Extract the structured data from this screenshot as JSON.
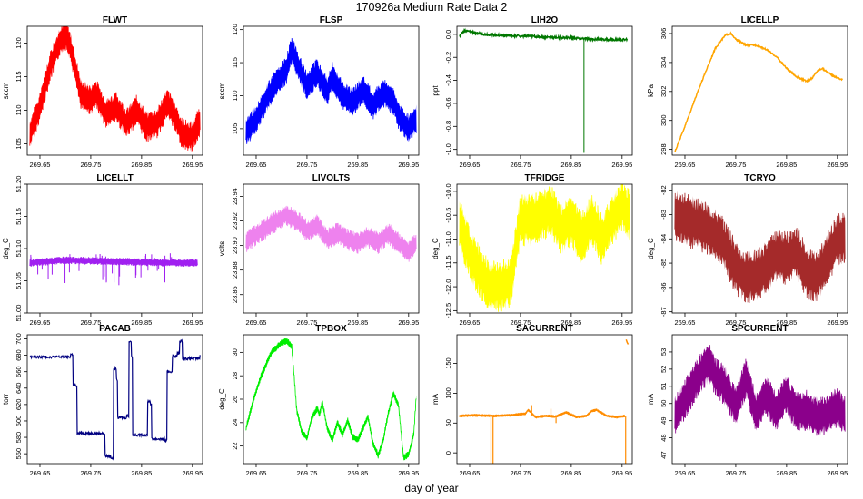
{
  "page": {
    "title": "170926a   Medium Rate Data 2",
    "xlabel": "day of year"
  },
  "chart_data": [
    {
      "type": "line",
      "title": "FLWT",
      "ylabel": "sccm",
      "color": "#ff0000",
      "xlim": [
        269.625,
        269.97
      ],
      "ylim": [
        103.3,
        122.5
      ],
      "yticks": [
        "105",
        "110",
        "115",
        "120"
      ],
      "ytick_values": [
        105,
        110,
        115,
        120
      ],
      "xticks": [
        "269.65",
        "269.75",
        "269.85",
        "269.95"
      ],
      "xtick_values": [
        269.65,
        269.75,
        269.85,
        269.95
      ],
      "x": [
        269.63,
        269.65,
        269.67,
        269.69,
        269.7,
        269.71,
        269.73,
        269.75,
        269.76,
        269.78,
        269.8,
        269.82,
        269.84,
        269.86,
        269.88,
        269.9,
        269.91,
        269.93,
        269.95,
        269.965
      ],
      "values": [
        106.5,
        110.5,
        116.5,
        120.5,
        121.2,
        119.5,
        112.5,
        111.5,
        112.5,
        109.5,
        110.5,
        108,
        110,
        107.5,
        108,
        111,
        110,
        106.5,
        106,
        108.5
      ],
      "band": 2.3
    },
    {
      "type": "line",
      "title": "FLSP",
      "ylabel": "sccm",
      "color": "#0000ff",
      "xlim": [
        269.625,
        269.97
      ],
      "ylim": [
        101,
        120.5
      ],
      "yticks": [
        "105",
        "110",
        "115",
        "120"
      ],
      "ytick_values": [
        105,
        110,
        115,
        120
      ],
      "xticks": [
        "269.65",
        "269.75",
        "269.85",
        "269.95"
      ],
      "xtick_values": [
        269.65,
        269.75,
        269.85,
        269.95
      ],
      "x": [
        269.63,
        269.65,
        269.67,
        269.69,
        269.71,
        269.72,
        269.73,
        269.75,
        269.77,
        269.79,
        269.8,
        269.82,
        269.84,
        269.86,
        269.88,
        269.9,
        269.92,
        269.93,
        269.95,
        269.965
      ],
      "values": [
        104.5,
        106.5,
        109.5,
        112,
        114,
        117,
        115,
        111.5,
        113.5,
        110.5,
        113,
        110,
        109,
        111,
        108.5,
        110.5,
        109,
        107,
        105,
        106.5
      ],
      "band": 2.2
    },
    {
      "type": "line",
      "title": "LIH2O",
      "ylabel": "ppt",
      "color": "#007700",
      "xlim": [
        269.625,
        269.97
      ],
      "ylim": [
        -1.05,
        0.07
      ],
      "yticks": [
        "-1.0",
        "-0.8",
        "-0.6",
        "-0.4",
        "-0.2",
        "0.0"
      ],
      "ytick_values": [
        -1.0,
        -0.8,
        -0.6,
        -0.4,
        -0.2,
        0.0
      ],
      "xticks": [
        "269.65",
        "269.75",
        "269.85",
        "269.95"
      ],
      "xtick_values": [
        269.65,
        269.75,
        269.85,
        269.95
      ],
      "x": [
        269.63,
        269.64,
        269.68,
        269.72,
        269.76,
        269.8,
        269.84,
        269.88,
        269.92,
        269.96
      ],
      "values": [
        -0.01,
        0.03,
        0.0,
        -0.01,
        -0.015,
        -0.025,
        -0.03,
        -0.04,
        -0.045,
        -0.045
      ],
      "band": 0.01,
      "spike": {
        "x": 269.875,
        "value": -1.03
      }
    },
    {
      "type": "line",
      "title": "LICELLP",
      "ylabel": "kPa",
      "color": "#ffa500",
      "xlim": [
        269.625,
        269.97
      ],
      "ylim": [
        297.6,
        306.5
      ],
      "yticks": [
        "298",
        "300",
        "302",
        "304",
        "306"
      ],
      "ytick_values": [
        298,
        300,
        302,
        304,
        306
      ],
      "xticks": [
        "269.65",
        "269.75",
        "269.85",
        "269.95"
      ],
      "xtick_values": [
        269.65,
        269.75,
        269.85,
        269.95
      ],
      "x": [
        269.63,
        269.65,
        269.67,
        269.69,
        269.71,
        269.73,
        269.74,
        269.75,
        269.77,
        269.79,
        269.81,
        269.83,
        269.85,
        269.87,
        269.89,
        269.9,
        269.91,
        269.92,
        269.94,
        269.96
      ],
      "values": [
        297.8,
        299.6,
        301.5,
        303.3,
        305,
        305.9,
        306,
        305.6,
        305.2,
        305.2,
        304.9,
        304.4,
        303.6,
        303,
        302.7,
        302.9,
        303.4,
        303.6,
        303.1,
        302.8
      ],
      "band": 0.05
    },
    {
      "type": "line",
      "title": "LICELLT",
      "ylabel": "deg_C",
      "color": "#a020f0",
      "xlim": [
        269.625,
        269.97
      ],
      "ylim": [
        51.0,
        51.2
      ],
      "yticks": [
        "51.00",
        "51.05",
        "51.10",
        "51.15",
        "51.20"
      ],
      "ytick_values": [
        51.0,
        51.05,
        51.1,
        51.15,
        51.2
      ],
      "xticks": [
        "269.65",
        "269.75",
        "269.85",
        "269.95"
      ],
      "xtick_values": [
        269.65,
        269.75,
        269.85,
        269.95
      ],
      "x": [
        269.63,
        269.7,
        269.8,
        269.9,
        269.96
      ],
      "values": [
        51.078,
        51.082,
        51.08,
        51.078,
        51.078
      ],
      "band": 0.006,
      "noise": "licellt"
    },
    {
      "type": "line",
      "title": "LIVOLTS",
      "ylabel": "volts",
      "color": "#ee82ee",
      "xlim": [
        269.625,
        269.97
      ],
      "ylim": [
        23.845,
        23.95
      ],
      "yticks": [
        "23.86",
        "23.88",
        "23.90",
        "23.92",
        "23.94"
      ],
      "ytick_values": [
        23.86,
        23.88,
        23.9,
        23.92,
        23.94
      ],
      "xticks": [
        "269.65",
        "269.75",
        "269.85",
        "269.95"
      ],
      "xtick_values": [
        269.65,
        269.75,
        269.85,
        269.95
      ],
      "x": [
        269.63,
        269.66,
        269.69,
        269.71,
        269.73,
        269.75,
        269.77,
        269.79,
        269.81,
        269.83,
        269.85,
        269.87,
        269.89,
        269.91,
        269.93,
        269.95,
        269.965
      ],
      "values": [
        23.903,
        23.912,
        23.92,
        23.925,
        23.92,
        23.912,
        23.917,
        23.905,
        23.91,
        23.905,
        23.902,
        23.907,
        23.902,
        23.91,
        23.902,
        23.895,
        23.902
      ],
      "band": 0.009
    },
    {
      "type": "line",
      "title": "TFRIDGE",
      "ylabel": "deg_C",
      "color": "#ffff00",
      "xlim": [
        269.625,
        269.97
      ],
      "ylim": [
        -12.55,
        -9.85
      ],
      "yticks": [
        "-12.5",
        "-12.0",
        "-11.5",
        "-11.0",
        "-10.5",
        "-10.0"
      ],
      "ytick_values": [
        -12.5,
        -12.0,
        -11.5,
        -11.0,
        -10.5,
        -10.0
      ],
      "xticks": [
        "269.65",
        "269.75",
        "269.85",
        "269.95"
      ],
      "xtick_values": [
        269.65,
        269.75,
        269.85,
        269.95
      ],
      "x": [
        269.63,
        269.65,
        269.67,
        269.69,
        269.71,
        269.73,
        269.75,
        269.77,
        269.79,
        269.81,
        269.83,
        269.85,
        269.87,
        269.89,
        269.91,
        269.93,
        269.95,
        269.965
      ],
      "values": [
        -10.7,
        -11.3,
        -11.7,
        -12.0,
        -12.0,
        -11.9,
        -10.6,
        -10.6,
        -10.5,
        -10.4,
        -10.8,
        -10.6,
        -11.0,
        -10.6,
        -11.0,
        -10.6,
        -10.3,
        -10.5
      ],
      "band": 0.55
    },
    {
      "type": "line",
      "title": "TCRYO",
      "ylabel": "deg_C",
      "color": "#a52a2a",
      "xlim": [
        269.625,
        269.97
      ],
      "ylim": [
        -87.05,
        -81.75
      ],
      "yticks": [
        "-87",
        "-86",
        "-85",
        "-84",
        "-83",
        "-82"
      ],
      "ytick_values": [
        -87,
        -86,
        -85,
        -84,
        -83,
        -82
      ],
      "xticks": [
        "269.65",
        "269.75",
        "269.85",
        "269.95"
      ],
      "xtick_values": [
        269.65,
        269.75,
        269.85,
        269.95
      ],
      "x": [
        269.63,
        269.66,
        269.69,
        269.71,
        269.73,
        269.75,
        269.77,
        269.79,
        269.81,
        269.83,
        269.85,
        269.87,
        269.89,
        269.91,
        269.93,
        269.95,
        269.965
      ],
      "values": [
        -83,
        -83.3,
        -83.5,
        -83.8,
        -84.3,
        -85.2,
        -85.6,
        -85.5,
        -85.2,
        -84.7,
        -84.8,
        -84.5,
        -85.4,
        -85.6,
        -84.8,
        -84,
        -84
      ],
      "band": 1.1
    },
    {
      "type": "line",
      "title": "PACAB",
      "ylabel": "torr",
      "color": "#000080",
      "xlim": [
        269.625,
        269.97
      ],
      "ylim": [
        548,
        705
      ],
      "yticks": [
        "560",
        "580",
        "600",
        "620",
        "640",
        "660",
        "680",
        "700"
      ],
      "ytick_values": [
        560,
        580,
        600,
        620,
        640,
        660,
        680,
        700
      ],
      "xticks": [
        "269.65",
        "269.75",
        "269.85",
        "269.95"
      ],
      "xtick_values": [
        269.65,
        269.75,
        269.85,
        269.95
      ],
      "steps": [
        [
          269.63,
          678
        ],
        [
          269.71,
          681
        ],
        [
          269.715,
          644
        ],
        [
          269.72,
          642
        ],
        [
          269.723,
          585
        ],
        [
          269.775,
          584
        ],
        [
          269.778,
          557
        ],
        [
          269.79,
          555
        ],
        [
          269.795,
          664
        ],
        [
          269.8,
          650
        ],
        [
          269.803,
          604
        ],
        [
          269.82,
          606
        ],
        [
          269.825,
          697
        ],
        [
          269.83,
          678
        ],
        [
          269.832,
          583
        ],
        [
          269.86,
          582
        ],
        [
          269.862,
          624
        ],
        [
          269.867,
          620
        ],
        [
          269.87,
          578
        ],
        [
          269.895,
          576
        ],
        [
          269.9,
          660
        ],
        [
          269.91,
          679
        ],
        [
          269.92,
          682
        ],
        [
          269.925,
          697
        ],
        [
          269.93,
          676
        ],
        [
          269.965,
          679
        ]
      ],
      "band": 1.5
    },
    {
      "type": "line",
      "title": "TPBOX",
      "ylabel": "deg_C",
      "color": "#00ee00",
      "xlim": [
        269.625,
        269.97
      ],
      "ylim": [
        20.5,
        31.5
      ],
      "yticks": [
        "22",
        "24",
        "26",
        "28",
        "30"
      ],
      "ytick_values": [
        22,
        24,
        26,
        28,
        30
      ],
      "xticks": [
        "269.65",
        "269.75",
        "269.85",
        "269.95"
      ],
      "xtick_values": [
        269.65,
        269.75,
        269.85,
        269.95
      ],
      "x": [
        269.63,
        269.645,
        269.66,
        269.68,
        269.7,
        269.71,
        269.72,
        269.73,
        269.74,
        269.75,
        269.76,
        269.77,
        269.775,
        269.78,
        269.79,
        269.8,
        269.81,
        269.82,
        269.83,
        269.84,
        269.85,
        269.86,
        269.87,
        269.88,
        269.89,
        269.9,
        269.91,
        269.92,
        269.93,
        269.94,
        269.95,
        269.96,
        269.965
      ],
      "values": [
        23.5,
        26,
        28,
        30,
        30.8,
        31,
        30.5,
        25,
        23.2,
        22.7,
        24.5,
        25.2,
        24.7,
        25.8,
        23.5,
        22.5,
        24,
        23,
        24.2,
        22.8,
        22.5,
        23.5,
        24.5,
        22.2,
        21.2,
        22.5,
        24.8,
        26.5,
        25.5,
        21,
        21.3,
        23,
        26.2
      ],
      "band": 0.3
    },
    {
      "type": "line",
      "title": "SACURRENT",
      "ylabel": "mA",
      "color": "#ff8c00",
      "xlim": [
        269.625,
        269.97
      ],
      "ylim": [
        -18,
        198
      ],
      "yticks": [
        "0",
        "50",
        "100",
        "150"
      ],
      "ytick_values": [
        0,
        50,
        100,
        150
      ],
      "xticks": [
        "269.65",
        "269.75",
        "269.85",
        "269.95"
      ],
      "xtick_values": [
        269.65,
        269.75,
        269.85,
        269.95
      ],
      "x": [
        269.63,
        269.66,
        269.7,
        269.73,
        269.76,
        269.765,
        269.78,
        269.8,
        269.82,
        269.84,
        269.86,
        269.88,
        269.89,
        269.9,
        269.92,
        269.94,
        269.955
      ],
      "values": [
        62,
        63,
        62,
        63,
        66,
        72,
        60,
        62,
        61,
        68,
        60,
        62,
        70,
        72,
        62,
        60,
        62
      ],
      "band": 2.5,
      "spikes": [
        {
          "x": 269.692,
          "value": -18
        },
        {
          "x": 269.696,
          "value": -18
        },
        {
          "x": 269.772,
          "value": 80
        },
        {
          "x": 269.81,
          "value": 74
        },
        {
          "x": 269.82,
          "value": 50
        },
        {
          "x": 269.957,
          "value": -18
        }
      ],
      "tail": {
        "x": [
          269.958,
          269.96,
          269.962
        ],
        "values": [
          190,
          185,
          182
        ]
      }
    },
    {
      "type": "line",
      "title": "SPCURRENT",
      "ylabel": "mA",
      "color": "#8b008b",
      "xlim": [
        269.625,
        269.97
      ],
      "ylim": [
        46.5,
        54
      ],
      "yticks": [
        "47",
        "48",
        "49",
        "50",
        "51",
        "52",
        "53"
      ],
      "ytick_values": [
        47,
        48,
        49,
        50,
        51,
        52,
        53
      ],
      "xticks": [
        "269.65",
        "269.75",
        "269.85",
        "269.95"
      ],
      "xtick_values": [
        269.65,
        269.75,
        269.85,
        269.95
      ],
      "x": [
        269.63,
        269.65,
        269.67,
        269.69,
        269.7,
        269.71,
        269.72,
        269.73,
        269.75,
        269.77,
        269.79,
        269.81,
        269.83,
        269.85,
        269.87,
        269.89,
        269.91,
        269.93,
        269.95,
        269.965
      ],
      "values": [
        49.2,
        50.2,
        51.3,
        52.1,
        52.3,
        51.5,
        51.3,
        51,
        49.8,
        51.5,
        49.5,
        50.5,
        49.5,
        50.5,
        49.5,
        49.6,
        49.2,
        49.4,
        49.8,
        49.3
      ],
      "band": 1.2
    }
  ]
}
